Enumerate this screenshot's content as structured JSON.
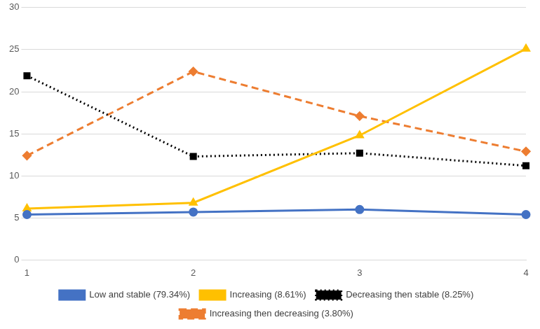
{
  "chart_data": {
    "type": "line",
    "categories": [
      "1",
      "2",
      "3",
      "4"
    ],
    "series": [
      {
        "name": "Low and stable (79.34%)",
        "color": "#4472c4",
        "marker": "circle",
        "line_style": "solid",
        "values": [
          5.4,
          5.7,
          6.0,
          5.4
        ]
      },
      {
        "name": "Increasing (8.61%)",
        "color": "#ffc000",
        "marker": "triangle",
        "line_style": "solid",
        "values": [
          6.1,
          6.8,
          14.8,
          25.1
        ]
      },
      {
        "name": "Decreasing then stable (8.25%)",
        "color": "#000000",
        "marker": "square",
        "line_style": "dotted",
        "values": [
          21.9,
          12.3,
          12.7,
          11.2
        ]
      },
      {
        "name": "Increasing then decreasing (3.80%)",
        "color": "#ed7d31",
        "marker": "diamond",
        "line_style": "dashed",
        "values": [
          12.4,
          22.4,
          17.1,
          12.9
        ]
      }
    ],
    "ylim": [
      0,
      30
    ],
    "yticks": [
      0,
      5,
      10,
      15,
      20,
      25,
      30
    ],
    "grid": true,
    "legend": "bottom"
  }
}
